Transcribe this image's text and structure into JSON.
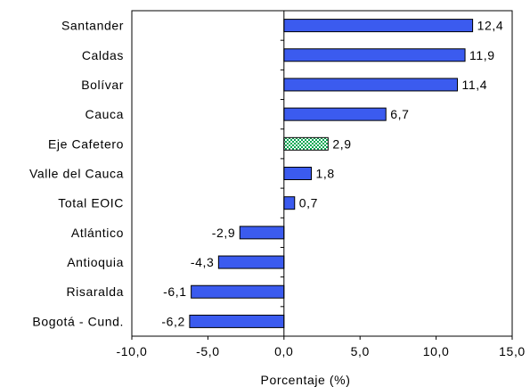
{
  "chart_data": {
    "type": "bar",
    "orientation": "horizontal",
    "categories": [
      "Santander",
      "Caldas",
      "Bolívar",
      "Cauca",
      "Eje Cafetero",
      "Valle del Cauca",
      "Total EOIC",
      "Atlántico",
      "Antioquia",
      "Risaralda",
      "Bogotá - Cund."
    ],
    "values": [
      12.4,
      11.9,
      11.4,
      6.7,
      2.9,
      1.8,
      0.7,
      -2.9,
      -4.3,
      -6.1,
      -6.2
    ],
    "value_labels": [
      "12,4",
      "11,9",
      "11,4",
      "6,7",
      "2,9",
      "1,8",
      "0,7",
      "-2,9",
      "-4,3",
      "-6,1",
      "-6,2"
    ],
    "highlight_category": "Eje Cafetero",
    "xlabel": "Porcentaje (%)",
    "ylabel": "",
    "xlim": [
      -10,
      15
    ],
    "xticks": [
      -10,
      -5,
      0,
      5,
      10,
      15
    ],
    "xtick_labels": [
      "-10,0",
      "-5,0",
      "0,0",
      "5,0",
      "10,0",
      "15,0"
    ],
    "grid": false,
    "colors": {
      "bar": "#3b5bef",
      "highlight_fill": "#00a651",
      "highlight_pattern": "#ffffff"
    }
  }
}
